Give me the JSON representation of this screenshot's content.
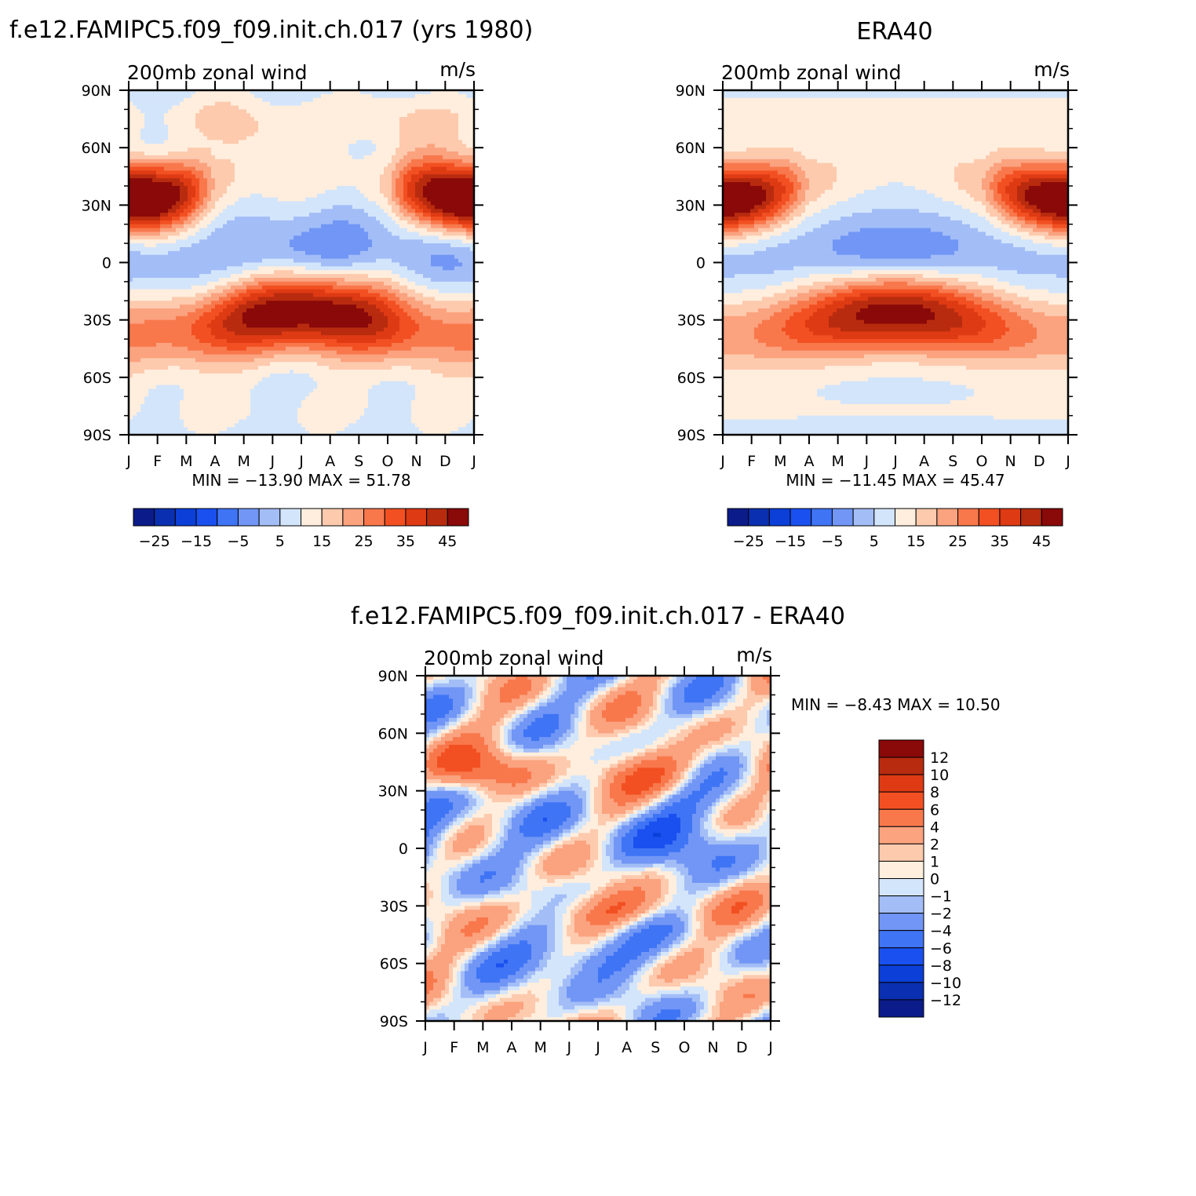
{
  "chart_data": [
    {
      "type": "heatmap",
      "panel": "model",
      "title": "f.e12.FAMIPC5.f09_f09.init.ch.017 (yrs 1980)",
      "left_label": "200mb zonal wind",
      "right_label": "m/s",
      "x_ticks": [
        "J",
        "F",
        "M",
        "A",
        "M",
        "J",
        "J",
        "A",
        "S",
        "O",
        "N",
        "D",
        "J"
      ],
      "y_ticks": [
        "90N",
        "60N",
        "30N",
        "0",
        "30S",
        "60S",
        "90S"
      ],
      "ylim": [
        -90,
        90
      ],
      "min_label": "MIN =",
      "min": "-13.90",
      "max_label": "MAX =",
      "max": "51.78",
      "colorbar_labels": [
        "-25",
        "-15",
        "-5",
        "5",
        "15",
        "25",
        "35",
        "45"
      ],
      "levels": [
        -30,
        -25,
        -20,
        -15,
        -10,
        -5,
        0,
        5,
        10,
        15,
        20,
        25,
        30,
        35,
        40,
        45,
        50
      ],
      "field": "model"
    },
    {
      "type": "heatmap",
      "panel": "obs",
      "title": "ERA40",
      "left_label": "200mb zonal wind",
      "right_label": "m/s",
      "x_ticks": [
        "J",
        "F",
        "M",
        "A",
        "M",
        "J",
        "J",
        "A",
        "S",
        "O",
        "N",
        "D",
        "J"
      ],
      "y_ticks": [
        "90N",
        "60N",
        "30N",
        "0",
        "30S",
        "60S",
        "90S"
      ],
      "ylim": [
        -90,
        90
      ],
      "min_label": "MIN =",
      "min": "-11.45",
      "max_label": "MAX =",
      "max": "45.47",
      "colorbar_labels": [
        "-25",
        "-15",
        "-5",
        "5",
        "15",
        "25",
        "35",
        "45"
      ],
      "levels": [
        -30,
        -25,
        -20,
        -15,
        -10,
        -5,
        0,
        5,
        10,
        15,
        20,
        25,
        30,
        35,
        40,
        45,
        50
      ],
      "field": "obs"
    },
    {
      "type": "heatmap",
      "panel": "diff",
      "title": "f.e12.FAMIPC5.f09_f09.init.ch.017 - ERA40",
      "left_label": "200mb zonal wind",
      "right_label": "m/s",
      "x_ticks": [
        "J",
        "F",
        "M",
        "A",
        "M",
        "J",
        "J",
        "A",
        "S",
        "O",
        "N",
        "D",
        "J"
      ],
      "y_ticks": [
        "90N",
        "60N",
        "30N",
        "0",
        "30S",
        "60S",
        "90S"
      ],
      "ylim": [
        -90,
        90
      ],
      "min_label": "MIN =",
      "min": "-8.43",
      "max_label": "MAX =",
      "max": "10.50",
      "colorbar_labels": [
        "12",
        "10",
        "8",
        "6",
        "4",
        "2",
        "1",
        "0",
        "-1",
        "-2",
        "-4",
        "-6",
        "-8",
        "-10",
        "-12"
      ],
      "levels": [
        -12,
        -10,
        -8,
        -6,
        -4,
        -2,
        -1,
        0,
        1,
        2,
        4,
        6,
        8,
        10,
        12
      ],
      "field": "diff"
    }
  ],
  "palette": [
    "#0b1c8a",
    "#0a2fb0",
    "#0b3fd8",
    "#1a50f0",
    "#3f74f5",
    "#7196f5",
    "#a3bdf7",
    "#d3e5fb",
    "#ffeedd",
    "#fdcaae",
    "#fba27f",
    "#f8784c",
    "#f25022",
    "#de3a13",
    "#b82b0f",
    "#8a0909"
  ]
}
